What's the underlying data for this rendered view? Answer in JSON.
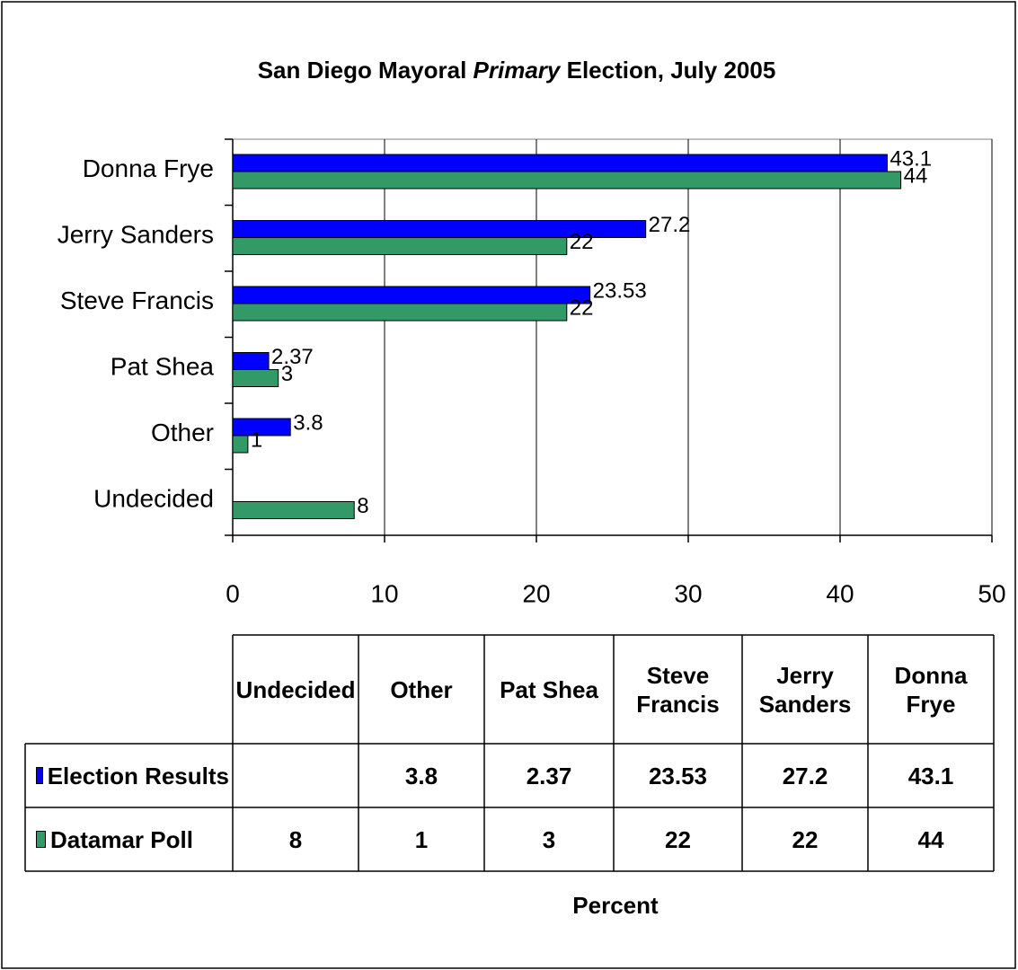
{
  "chart_data": {
    "type": "bar",
    "orientation": "horizontal",
    "title": [
      "San Diego Mayoral ",
      "Primary",
      " Election, July 2005"
    ],
    "categories": [
      "Donna Frye",
      "Jerry Sanders",
      "Steve Francis",
      "Pat Shea",
      "Other",
      "Undecided"
    ],
    "series": [
      {
        "name": "Election Results",
        "color": "#0000ff",
        "values": [
          43.1,
          27.2,
          23.53,
          2.37,
          3.8,
          null
        ]
      },
      {
        "name": "Datamar Poll",
        "color": "#339966",
        "values": [
          44,
          22,
          22,
          3,
          1,
          8
        ]
      }
    ],
    "xlim": [
      0,
      50
    ],
    "xticks": [
      0,
      10,
      20,
      30,
      40,
      50
    ],
    "xlabel": "Percent",
    "grid": true
  }
}
